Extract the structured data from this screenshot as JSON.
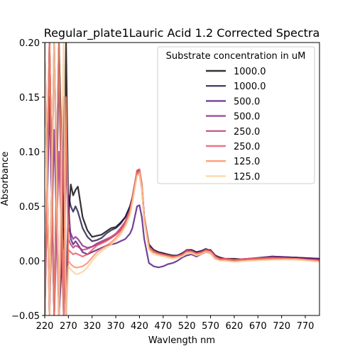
{
  "chart_data": {
    "type": "line",
    "title": "Regular_plate1Lauric Acid 1.2 Corrected Spectra",
    "xlabel": "Wavlength nm",
    "ylabel": "Absorbance",
    "xlim": [
      220,
      800
    ],
    "ylim": [
      -0.05,
      0.2
    ],
    "xticks": [
      220,
      270,
      320,
      370,
      420,
      470,
      520,
      570,
      620,
      670,
      720,
      770
    ],
    "yticks": [
      -0.05,
      0.0,
      0.05,
      0.1,
      0.15,
      0.2
    ],
    "ytick_labels": [
      "−0.05",
      "0.00",
      "0.05",
      "0.10",
      "0.15",
      "0.20"
    ],
    "grid": false,
    "legend": {
      "title": "Substrate concentration in uM",
      "position": "top-right"
    },
    "series": [
      {
        "name": "1000.0",
        "color": "#000004",
        "x": [
          220,
          230,
          240,
          250,
          260,
          265,
          270,
          275,
          280,
          285,
          290,
          300,
          310,
          320,
          330,
          340,
          350,
          360,
          370,
          380,
          390,
          400,
          405,
          410,
          415,
          420,
          425,
          430,
          440,
          450,
          460,
          470,
          480,
          490,
          500,
          510,
          520,
          530,
          540,
          550,
          560,
          570,
          580,
          590,
          600,
          620,
          650,
          700,
          750,
          800
        ],
        "y": [
          -0.05,
          0.2,
          -0.05,
          0.2,
          0.02,
          0.2,
          0.04,
          0.07,
          0.06,
          0.065,
          0.068,
          0.04,
          0.028,
          0.022,
          0.023,
          0.024,
          0.027,
          0.03,
          0.031,
          0.035,
          0.04,
          0.05,
          0.058,
          0.07,
          0.082,
          0.083,
          0.07,
          0.04,
          0.015,
          0.01,
          0.008,
          0.007,
          0.006,
          0.005,
          0.005,
          0.007,
          0.01,
          0.01,
          0.008,
          0.009,
          0.01,
          0.01,
          0.005,
          0.003,
          0.002,
          0.002,
          0.001,
          0.002,
          0.003,
          0.002
        ]
      },
      {
        "name": "1000.0",
        "color": "#1d1147",
        "x": [
          220,
          230,
          240,
          250,
          260,
          265,
          270,
          275,
          280,
          285,
          290,
          300,
          310,
          320,
          330,
          340,
          350,
          360,
          370,
          380,
          390,
          400,
          405,
          410,
          415,
          420,
          425,
          430,
          440,
          450,
          460,
          470,
          480,
          490,
          500,
          510,
          520,
          530,
          540,
          550,
          560,
          570,
          580,
          590,
          600,
          620,
          650,
          700,
          750,
          800
        ],
        "y": [
          0.2,
          -0.05,
          0.2,
          -0.05,
          0.03,
          -0.05,
          0.06,
          0.05,
          0.045,
          0.05,
          0.045,
          0.03,
          0.022,
          0.018,
          0.019,
          0.021,
          0.025,
          0.028,
          0.03,
          0.034,
          0.04,
          0.05,
          0.058,
          0.07,
          0.08,
          0.081,
          0.068,
          0.04,
          0.014,
          0.01,
          0.008,
          0.007,
          0.005,
          0.004,
          0.005,
          0.006,
          0.01,
          0.01,
          0.008,
          0.009,
          0.011,
          0.009,
          0.004,
          0.003,
          0.002,
          0.001,
          0.002,
          0.004,
          0.003,
          0.001
        ]
      },
      {
        "name": "500.0",
        "color": "#51127c",
        "x": [
          220,
          230,
          240,
          250,
          260,
          265,
          270,
          275,
          280,
          285,
          290,
          300,
          310,
          320,
          330,
          340,
          350,
          360,
          370,
          380,
          390,
          400,
          405,
          410,
          415,
          420,
          425,
          430,
          440,
          450,
          460,
          470,
          480,
          490,
          500,
          510,
          520,
          530,
          540,
          550,
          560,
          570,
          580,
          590,
          600,
          620,
          650,
          700,
          750,
          800
        ],
        "y": [
          -0.05,
          0.15,
          -0.05,
          0.18,
          -0.05,
          0.1,
          0.05,
          0.02,
          0.015,
          0.018,
          0.015,
          0.008,
          0.006,
          0.008,
          0.01,
          0.012,
          0.014,
          0.015,
          0.016,
          0.018,
          0.02,
          0.025,
          0.03,
          0.04,
          0.05,
          0.051,
          0.04,
          0.02,
          -0.002,
          -0.005,
          -0.006,
          -0.005,
          -0.003,
          -0.002,
          0.0,
          0.003,
          0.005,
          0.006,
          0.004,
          0.006,
          0.008,
          0.007,
          0.002,
          0.001,
          0.001,
          0.0,
          0.001,
          0.004,
          0.003,
          0.002
        ]
      },
      {
        "name": "500.0",
        "color": "#832681",
        "x": [
          220,
          230,
          240,
          250,
          260,
          265,
          270,
          275,
          280,
          285,
          290,
          300,
          310,
          320,
          330,
          340,
          350,
          360,
          370,
          380,
          390,
          400,
          405,
          410,
          415,
          420,
          425,
          430,
          440,
          450,
          460,
          470,
          480,
          490,
          500,
          510,
          520,
          530,
          540,
          550,
          560,
          570,
          580,
          590,
          600,
          620,
          650,
          700,
          750,
          800
        ],
        "y": [
          0.2,
          -0.05,
          0.12,
          -0.05,
          0.15,
          -0.05,
          0.03,
          0.025,
          0.02,
          0.022,
          0.02,
          0.014,
          0.012,
          0.013,
          0.015,
          0.017,
          0.019,
          0.021,
          0.024,
          0.028,
          0.034,
          0.045,
          0.055,
          0.068,
          0.079,
          0.08,
          0.066,
          0.038,
          0.012,
          0.008,
          0.007,
          0.006,
          0.005,
          0.004,
          0.005,
          0.006,
          0.01,
          0.009,
          0.007,
          0.008,
          0.01,
          0.009,
          0.004,
          0.002,
          0.002,
          0.001,
          0.002,
          0.003,
          0.002,
          0.001
        ]
      },
      {
        "name": "250.0",
        "color": "#b73779",
        "x": [
          220,
          230,
          240,
          250,
          260,
          265,
          270,
          275,
          280,
          285,
          290,
          300,
          310,
          320,
          330,
          340,
          350,
          360,
          370,
          380,
          390,
          400,
          405,
          410,
          415,
          420,
          425,
          430,
          440,
          450,
          460,
          470,
          480,
          490,
          500,
          510,
          520,
          530,
          540,
          550,
          560,
          570,
          580,
          590,
          600,
          620,
          650,
          700,
          750,
          800
        ],
        "y": [
          -0.05,
          0.2,
          -0.05,
          0.1,
          -0.05,
          0.12,
          0.02,
          0.015,
          0.012,
          0.014,
          0.013,
          0.01,
          0.011,
          0.013,
          0.016,
          0.018,
          0.02,
          0.022,
          0.025,
          0.03,
          0.036,
          0.047,
          0.058,
          0.07,
          0.082,
          0.083,
          0.068,
          0.039,
          0.012,
          0.008,
          0.007,
          0.006,
          0.005,
          0.004,
          0.004,
          0.006,
          0.009,
          0.009,
          0.007,
          0.008,
          0.01,
          0.009,
          0.004,
          0.002,
          0.002,
          0.001,
          0.002,
          0.003,
          0.002,
          0.001
        ]
      },
      {
        "name": "250.0",
        "color": "#e75263",
        "x": [
          220,
          230,
          240,
          250,
          260,
          265,
          270,
          275,
          280,
          285,
          290,
          300,
          310,
          320,
          330,
          340,
          350,
          360,
          370,
          380,
          390,
          400,
          405,
          410,
          415,
          420,
          425,
          430,
          440,
          450,
          460,
          470,
          480,
          490,
          500,
          510,
          520,
          530,
          540,
          550,
          560,
          570,
          580,
          590,
          600,
          620,
          650,
          700,
          750,
          800
        ],
        "y": [
          0.2,
          -0.05,
          0.2,
          -0.05,
          0.1,
          -0.05,
          0.01,
          0.008,
          0.006,
          0.007,
          0.006,
          0.004,
          0.006,
          0.01,
          0.014,
          0.016,
          0.018,
          0.021,
          0.024,
          0.029,
          0.035,
          0.046,
          0.057,
          0.07,
          0.083,
          0.084,
          0.07,
          0.04,
          0.013,
          0.009,
          0.007,
          0.006,
          0.005,
          0.004,
          0.004,
          0.006,
          0.009,
          0.009,
          0.007,
          0.008,
          0.01,
          0.009,
          0.004,
          0.002,
          0.002,
          0.001,
          0.002,
          0.003,
          0.002,
          0.0
        ]
      },
      {
        "name": "125.0",
        "color": "#fc8961",
        "x": [
          220,
          230,
          240,
          250,
          260,
          265,
          270,
          275,
          280,
          285,
          290,
          300,
          310,
          320,
          330,
          340,
          350,
          360,
          370,
          380,
          390,
          400,
          405,
          410,
          415,
          420,
          425,
          430,
          440,
          450,
          460,
          470,
          480,
          490,
          500,
          510,
          520,
          530,
          540,
          550,
          560,
          570,
          580,
          590,
          600,
          620,
          650,
          700,
          750,
          800
        ],
        "y": [
          -0.05,
          0.2,
          -0.05,
          0.2,
          -0.05,
          0.15,
          0.0,
          -0.003,
          -0.005,
          -0.006,
          -0.006,
          -0.005,
          -0.002,
          0.003,
          0.008,
          0.011,
          0.014,
          0.017,
          0.021,
          0.026,
          0.033,
          0.044,
          0.055,
          0.068,
          0.08,
          0.082,
          0.068,
          0.039,
          0.012,
          0.008,
          0.006,
          0.005,
          0.004,
          0.003,
          0.004,
          0.005,
          0.008,
          0.008,
          0.006,
          0.007,
          0.009,
          0.008,
          0.003,
          0.001,
          0.001,
          0.0,
          0.001,
          0.002,
          0.002,
          0.0
        ]
      },
      {
        "name": "125.0",
        "color": "#fcce99",
        "x": [
          220,
          230,
          240,
          250,
          260,
          265,
          270,
          275,
          280,
          285,
          290,
          300,
          310,
          320,
          330,
          340,
          350,
          360,
          370,
          380,
          390,
          400,
          405,
          410,
          415,
          420,
          425,
          430,
          440,
          450,
          460,
          470,
          480,
          490,
          500,
          510,
          520,
          530,
          540,
          550,
          560,
          570,
          580,
          590,
          600,
          620,
          650,
          700,
          750,
          800
        ],
        "y": [
          0.2,
          -0.05,
          0.2,
          -0.05,
          0.2,
          -0.05,
          -0.005,
          -0.008,
          -0.01,
          -0.012,
          -0.012,
          -0.01,
          -0.006,
          0.0,
          0.005,
          0.009,
          0.012,
          0.015,
          0.019,
          0.024,
          0.031,
          0.042,
          0.053,
          0.066,
          0.078,
          0.08,
          0.066,
          0.037,
          0.01,
          0.006,
          0.005,
          0.004,
          0.003,
          0.002,
          0.003,
          0.004,
          0.007,
          0.007,
          0.005,
          0.006,
          0.008,
          0.007,
          0.002,
          0.0,
          0.0,
          -0.001,
          0.0,
          0.001,
          0.001,
          -0.001
        ]
      }
    ]
  }
}
